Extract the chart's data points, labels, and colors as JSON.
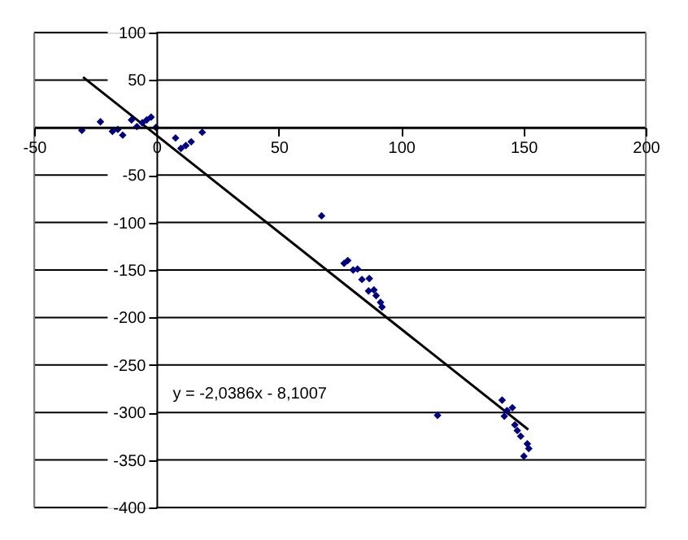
{
  "chart_data": {
    "type": "scatter",
    "grid": "y",
    "xlim": [
      -50,
      200
    ],
    "xticks": [
      -50,
      0,
      50,
      100,
      150,
      200
    ],
    "ylim": [
      -400,
      100
    ],
    "yticks": [
      -400,
      -350,
      -300,
      -250,
      -200,
      -150,
      -100,
      -50,
      {
        "value": 0,
        "label": null
      },
      50,
      100
    ],
    "annotations": [
      "y = -2,0386x - 8,1007"
    ],
    "series": [
      {
        "marker": "diamond",
        "color": "#000080",
        "x": [
          -30.5,
          -22.9,
          -18,
          -15.8,
          -13.8,
          -10.2,
          -8,
          -5.8,
          -4,
          -2.2,
          -0.2,
          7.8,
          10,
          12,
          14.2,
          18.7,
          67.5,
          78.2,
          76.7,
          80.4,
          82.2,
          84,
          87,
          86.7,
          88.9,
          89.8,
          91.6,
          92.2,
          114.9,
          141.3,
          142.2,
          143.3,
          145.5,
          146.5,
          147.5,
          148.9,
          151.6,
          152.2,
          150.2
        ],
        "values": [
          -3,
          6,
          -4,
          -2,
          -8,
          8,
          1,
          5,
          8,
          11,
          0,
          -11,
          -22,
          -19,
          -15,
          -5,
          -93,
          -140,
          -143,
          -150,
          -149,
          -160,
          -159,
          -172,
          -171,
          -177,
          -184,
          -189,
          -303,
          -287,
          -304,
          -298,
          -295,
          -313,
          -319,
          -325,
          -333,
          -338,
          -346
        ]
      },
      {
        "type": "line",
        "color": "#000000",
        "x": [
          -30,
          152
        ],
        "values": [
          53,
          -318
        ]
      }
    ]
  }
}
